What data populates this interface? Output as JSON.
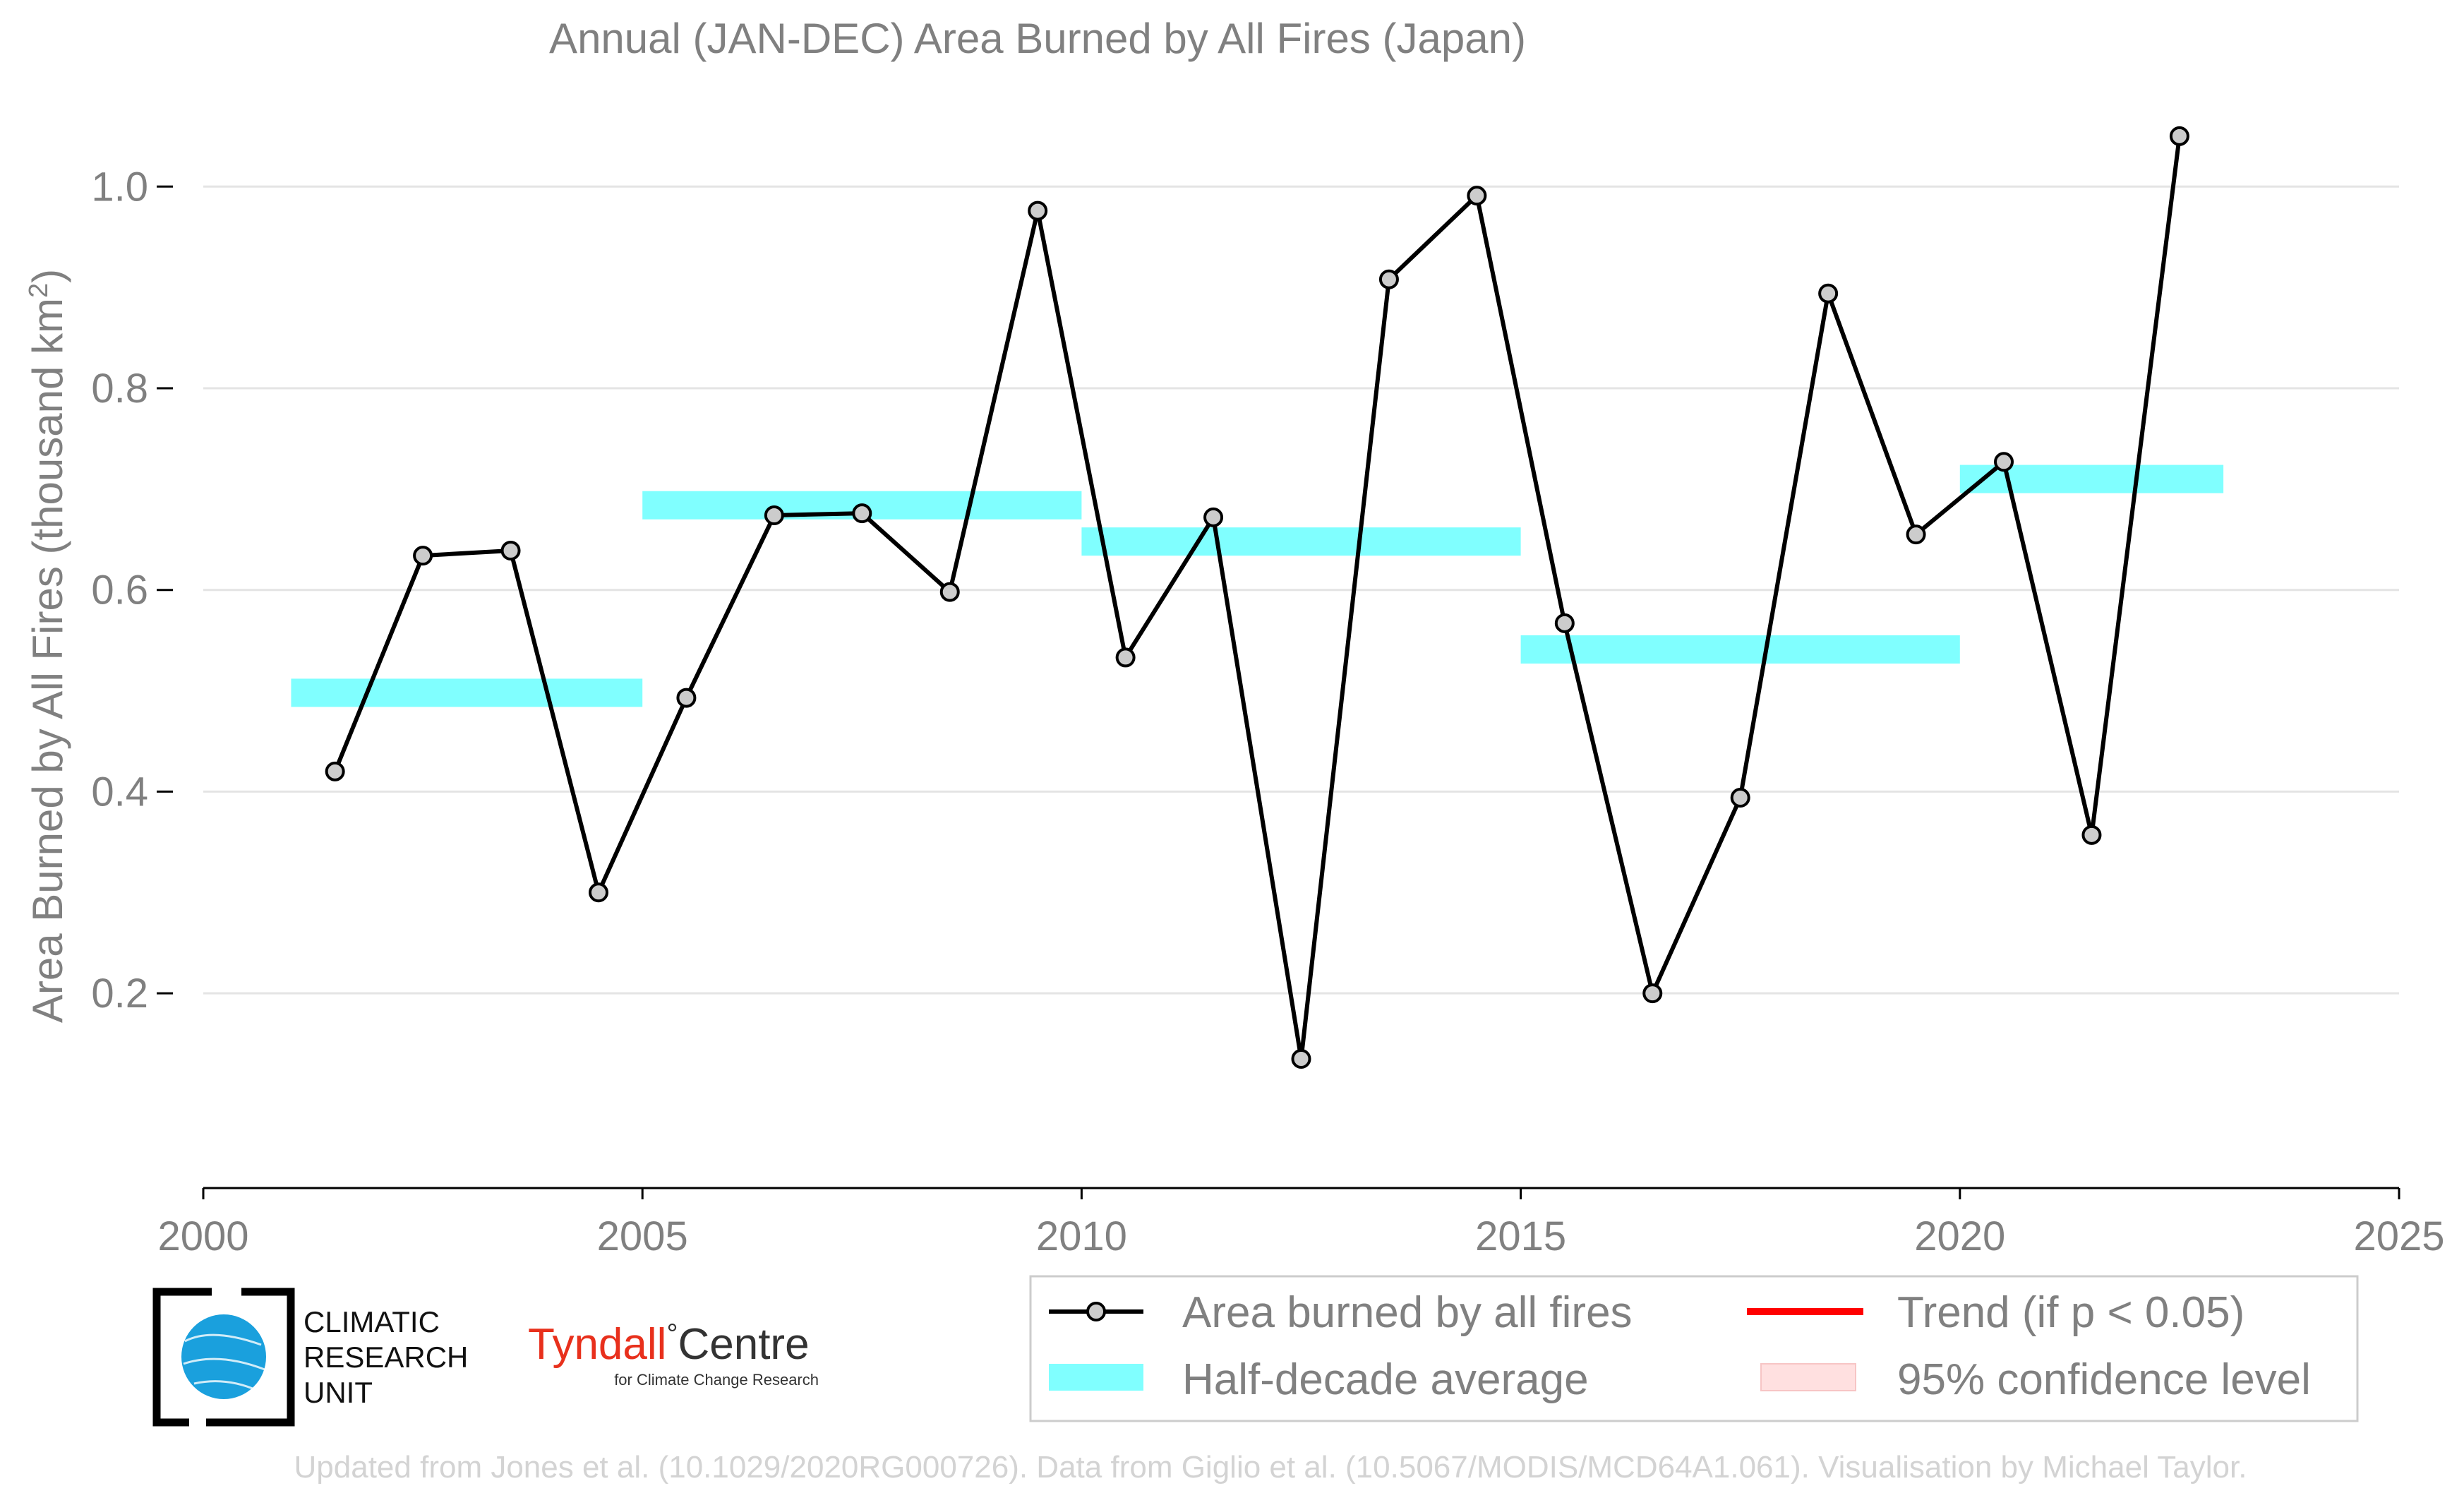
{
  "chart_data": {
    "type": "line",
    "title": "Annual (JAN-DEC) Area Burned by All Fires (Japan)",
    "xlabel": "",
    "ylabel": "Area Burned by All Fires (thousand km",
    "ylabel_sup": "2",
    "ylabel_end": ")",
    "xlim": [
      2000,
      2025
    ],
    "ylim": [
      0.065,
      1.08
    ],
    "x_ticks": [
      2000,
      2005,
      2010,
      2015,
      2020,
      2025
    ],
    "y_ticks": [
      0.2,
      0.4,
      0.6,
      0.8,
      1.0
    ],
    "y_tick_labels": [
      "0.2",
      "0.4",
      "0.6",
      "0.8",
      "1.0"
    ],
    "grid": "horizontal",
    "series": [
      {
        "name": "Area burned by all fires",
        "color": "#000000",
        "marker_fill": "#cccccc",
        "x": [
          2001.5,
          2002.5,
          2003.5,
          2004.5,
          2005.5,
          2006.5,
          2007.5,
          2008.5,
          2009.5,
          2010.5,
          2011.5,
          2012.5,
          2013.5,
          2014.5,
          2015.5,
          2016.5,
          2017.5,
          2018.5,
          2019.5,
          2020.5,
          2021.5,
          2022.5
        ],
        "values": [
          0.42,
          0.634,
          0.639,
          0.3,
          0.493,
          0.674,
          0.676,
          0.598,
          0.976,
          0.533,
          0.672,
          0.135,
          0.908,
          0.991,
          0.567,
          0.2,
          0.394,
          0.894,
          0.655,
          0.727,
          0.357,
          1.05
        ]
      }
    ],
    "half_decade_averages": {
      "name": "Half-decade average",
      "color": "#80ffff",
      "segments": [
        {
          "start": 2001,
          "end": 2005,
          "value": 0.498
        },
        {
          "start": 2005,
          "end": 2010,
          "value": 0.684
        },
        {
          "start": 2010,
          "end": 2015,
          "value": 0.648
        },
        {
          "start": 2015,
          "end": 2020,
          "value": 0.541
        },
        {
          "start": 2020,
          "end": 2023,
          "value": 0.71
        }
      ]
    },
    "legend": {
      "placement": "bottom-right",
      "entries": [
        {
          "label": "Area burned by all fires",
          "kind": "line-marker",
          "color": "#000000"
        },
        {
          "label": "Trend (if p < 0.05)",
          "kind": "line",
          "color": "#ff0000"
        },
        {
          "label": "Half-decade average",
          "kind": "band",
          "color": "#80ffff"
        },
        {
          "label": "95% confidence level",
          "kind": "band",
          "color": "#ffe0e0"
        }
      ]
    }
  },
  "logos": {
    "cru": {
      "line1": "CLIMATIC",
      "line2": "RESEARCH",
      "line3": "UNIT"
    },
    "tyndall": {
      "name": "Tyndall",
      "degree": "°",
      "centre": "Centre",
      "subtitle": "for Climate Change Research"
    }
  },
  "credit": "Updated from Jones et al. (10.1029/2020RG000726). Data from Giglio et al. (10.5067/MODIS/MCD64A1.061). Visualisation by Michael Taylor."
}
